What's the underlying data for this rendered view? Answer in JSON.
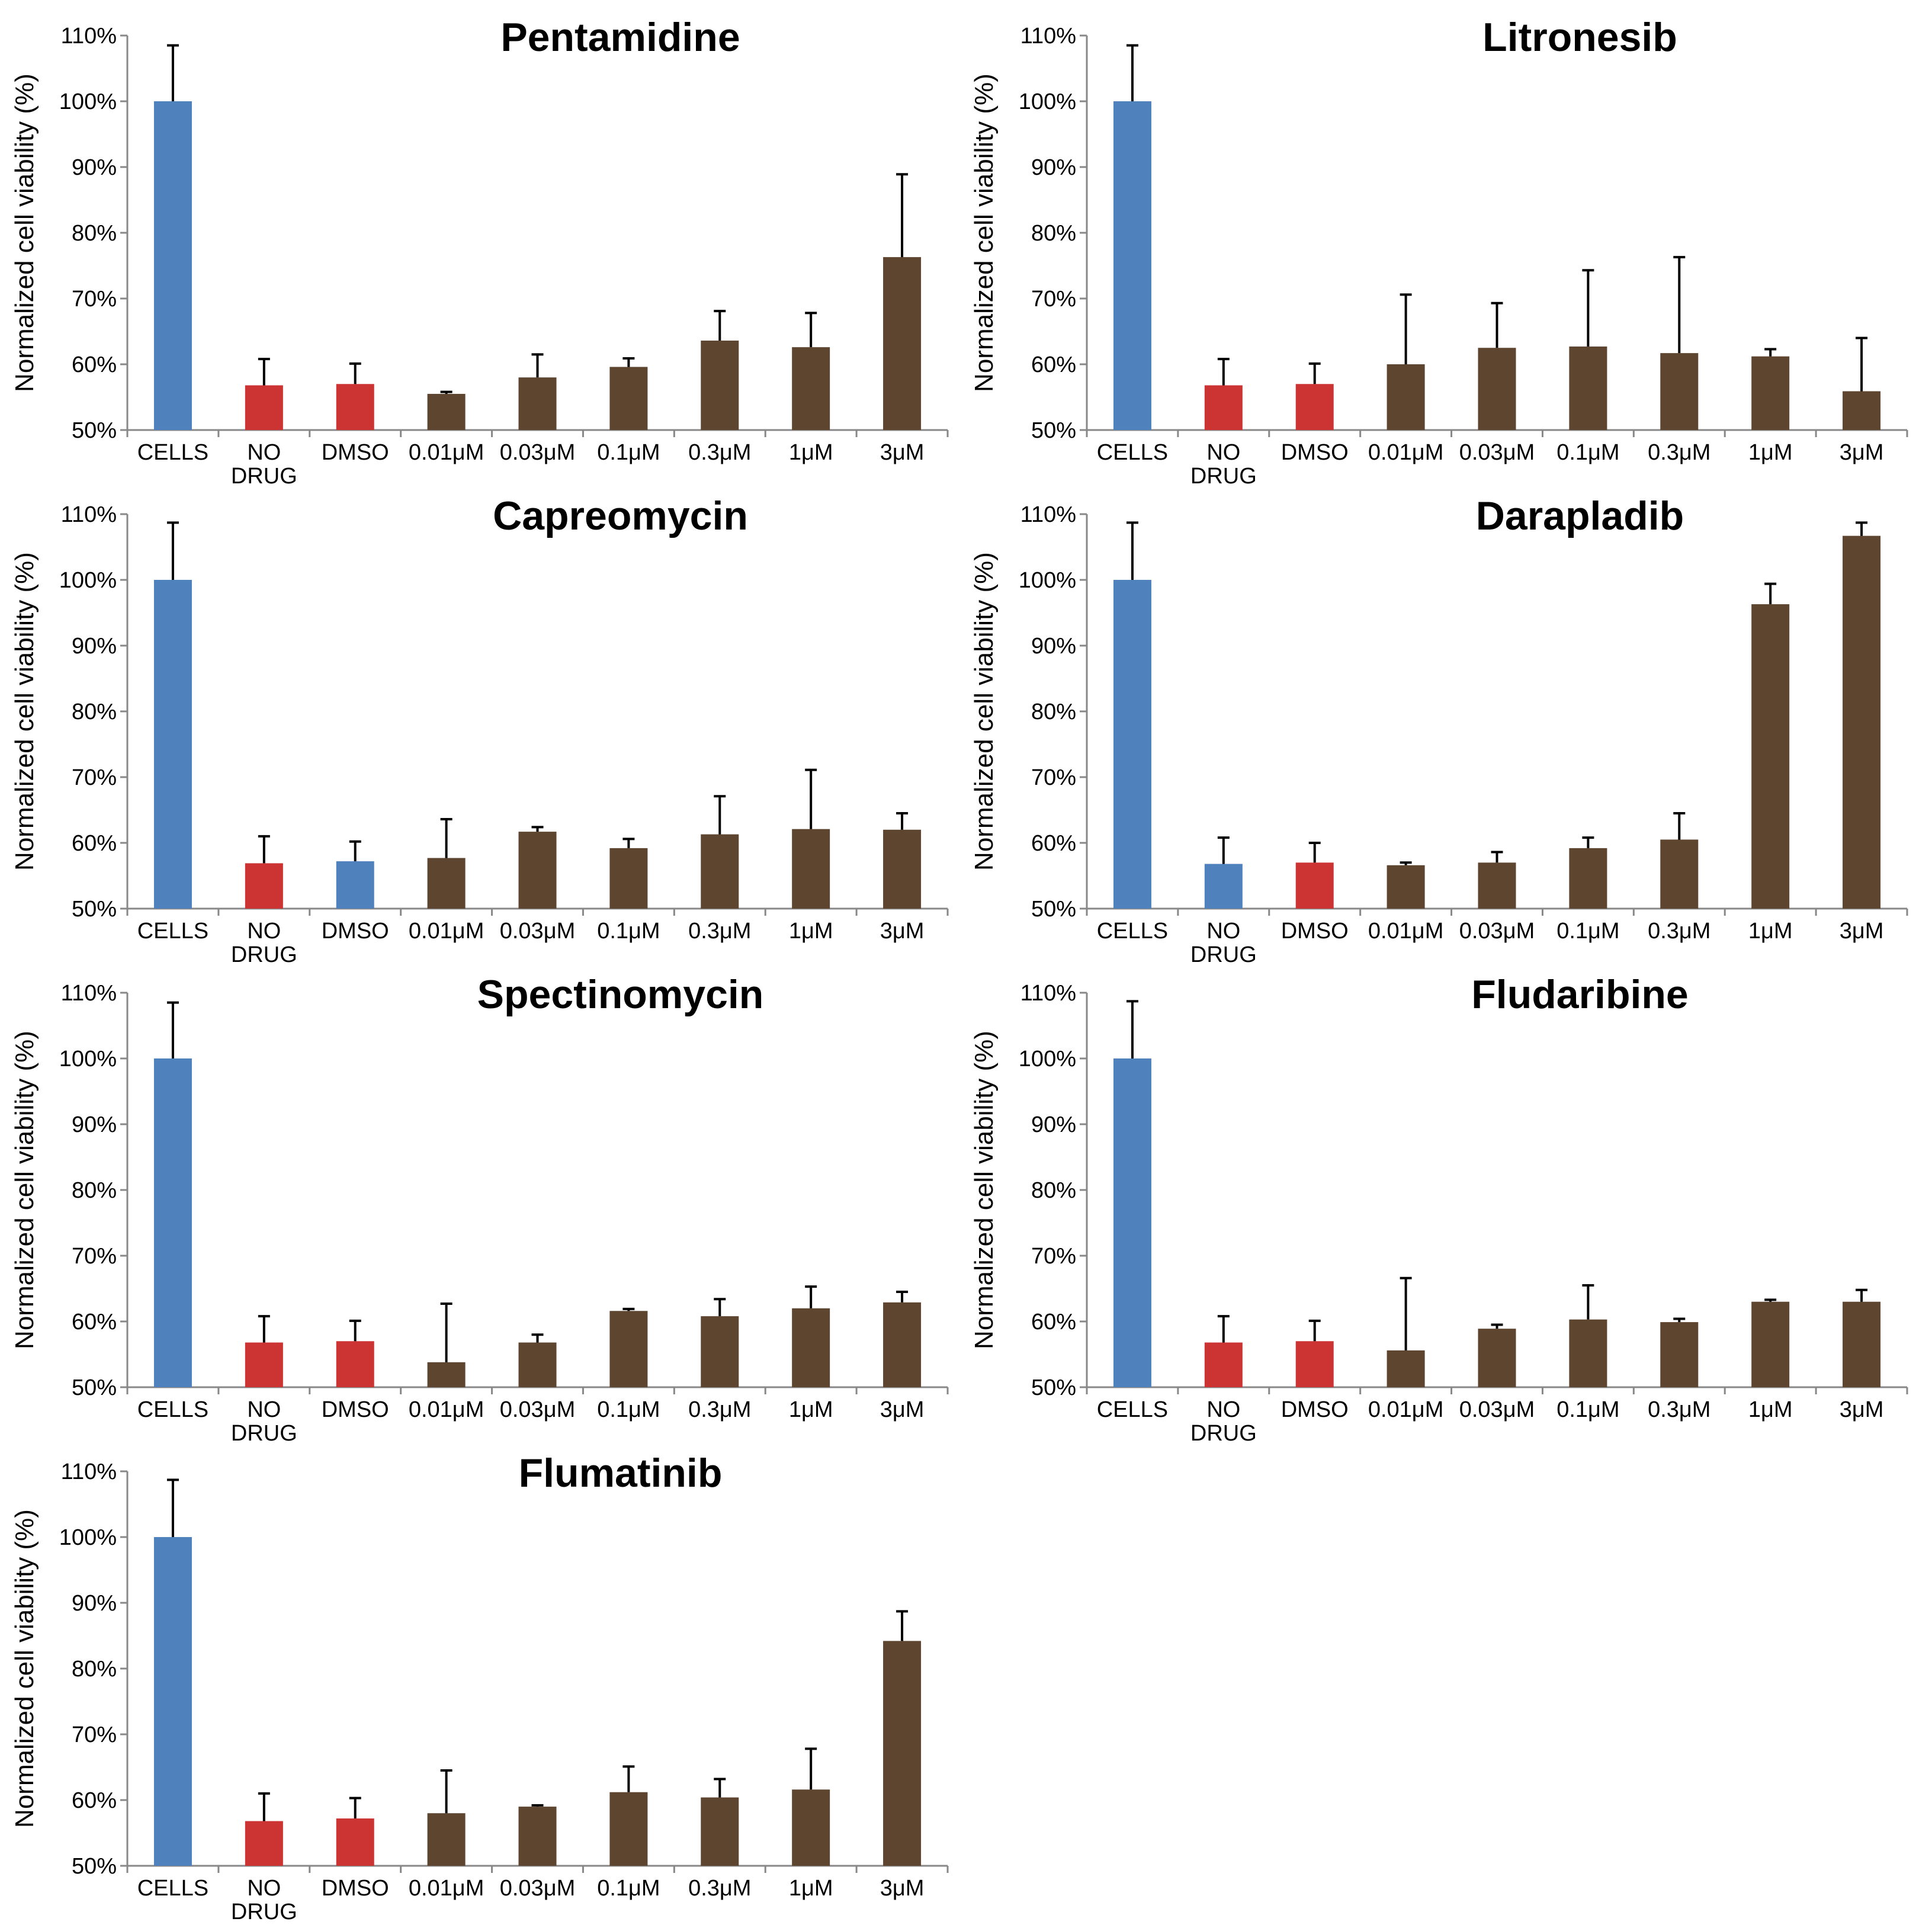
{
  "colors": {
    "cells": "#4f81bd",
    "control": "#cc3333",
    "drug": "#5e4530",
    "axis": "#888888",
    "error": "#000000"
  },
  "y_axis_label": "Normalized cell viability (%)",
  "y_ticks": [
    "50%",
    "60%",
    "70%",
    "80%",
    "90%",
    "100%",
    "110%"
  ],
  "categories": [
    "CELLS",
    [
      "NO",
      "DRUG"
    ],
    "DMSO",
    "0.01μM",
    "0.03μM",
    "0.1μM",
    "0.3μM",
    "1μM",
    "3μM"
  ],
  "chart_data": [
    {
      "type": "bar",
      "title": "Pentamidine",
      "ylabel": "Normalized cell viability (%)",
      "ylim": [
        50,
        110
      ],
      "categories": [
        "CELLS",
        "NO DRUG",
        "DMSO",
        "0.01μM",
        "0.03μM",
        "0.1μM",
        "0.3μM",
        "1μM",
        "3μM"
      ],
      "values": [
        100,
        56.8,
        57.0,
        55.5,
        58.0,
        59.6,
        63.6,
        62.6,
        76.3
      ],
      "errors": [
        8.5,
        4.0,
        3.1,
        0.3,
        3.5,
        1.3,
        4.5,
        5.2,
        12.6
      ],
      "bar_colors": [
        "cells",
        "control",
        "control",
        "drug",
        "drug",
        "drug",
        "drug",
        "drug",
        "drug"
      ]
    },
    {
      "type": "bar",
      "title": "Litronesib",
      "ylabel": "Normalized cell viability (%)",
      "ylim": [
        50,
        110
      ],
      "categories": [
        "CELLS",
        "NO DRUG",
        "DMSO",
        "0.01μM",
        "0.03μM",
        "0.1μM",
        "0.3μM",
        "1μM",
        "3μM"
      ],
      "values": [
        100,
        56.8,
        57.0,
        60.0,
        62.5,
        62.7,
        61.7,
        61.2,
        55.9
      ],
      "errors": [
        8.5,
        4.0,
        3.1,
        10.6,
        6.8,
        11.6,
        14.6,
        1.1,
        8.1
      ],
      "bar_colors": [
        "cells",
        "control",
        "control",
        "drug",
        "drug",
        "drug",
        "drug",
        "drug",
        "drug"
      ]
    },
    {
      "type": "bar",
      "title": "Capreomycin",
      "ylabel": "Normalized cell viability (%)",
      "ylim": [
        50,
        110
      ],
      "categories": [
        "CELLS",
        "NO DRUG",
        "DMSO",
        "0.01μM",
        "0.03μM",
        "0.1μM",
        "0.3μM",
        "1μM",
        "3μM"
      ],
      "values": [
        100,
        56.9,
        57.2,
        57.7,
        61.7,
        59.2,
        61.3,
        62.1,
        62.0
      ],
      "errors": [
        8.7,
        4.1,
        3.0,
        5.9,
        0.7,
        1.4,
        5.8,
        9.0,
        2.5
      ],
      "bar_colors": [
        "cells",
        "control",
        "cells",
        "drug",
        "drug",
        "drug",
        "drug",
        "drug",
        "drug"
      ]
    },
    {
      "type": "bar",
      "title": "Darapladib",
      "ylabel": "Normalized cell viability (%)",
      "ylim": [
        50,
        110
      ],
      "categories": [
        "CELLS",
        "NO DRUG",
        "DMSO",
        "0.01μM",
        "0.03μM",
        "0.1μM",
        "0.3μM",
        "1μM",
        "3μM"
      ],
      "values": [
        100,
        56.8,
        57.0,
        56.6,
        57.0,
        59.2,
        60.5,
        96.3,
        106.7
      ],
      "errors": [
        8.7,
        4.0,
        3.0,
        0.4,
        1.6,
        1.6,
        4.0,
        3.1,
        2.0
      ],
      "bar_colors": [
        "cells",
        "cells",
        "control",
        "drug",
        "drug",
        "drug",
        "drug",
        "drug",
        "drug"
      ]
    },
    {
      "type": "bar",
      "title": "Spectinomycin",
      "ylabel": "Normalized cell viability (%)",
      "ylim": [
        50,
        110
      ],
      "categories": [
        "CELLS",
        "NO DRUG",
        "DMSO",
        "0.01μM",
        "0.03μM",
        "0.1μM",
        "0.3μM",
        "1μM",
        "3μM"
      ],
      "values": [
        100,
        56.8,
        57.0,
        53.8,
        56.8,
        61.6,
        60.8,
        62.0,
        62.9
      ],
      "errors": [
        8.5,
        4.0,
        3.1,
        8.9,
        1.2,
        0.3,
        2.6,
        3.3,
        1.6
      ],
      "bar_colors": [
        "cells",
        "control",
        "control",
        "drug",
        "drug",
        "drug",
        "drug",
        "drug",
        "drug"
      ]
    },
    {
      "type": "bar",
      "title": "Fludaribine",
      "ylabel": "Normalized cell viability (%)",
      "ylim": [
        50,
        110
      ],
      "categories": [
        "CELLS",
        "NO DRUG",
        "DMSO",
        "0.01μM",
        "0.03μM",
        "0.1μM",
        "0.3μM",
        "1μM",
        "3μM"
      ],
      "values": [
        100,
        56.8,
        57.0,
        55.6,
        58.9,
        60.3,
        59.9,
        63.0,
        63.0
      ],
      "errors": [
        8.7,
        4.0,
        3.1,
        11.0,
        0.6,
        5.2,
        0.5,
        0.3,
        1.8
      ],
      "bar_colors": [
        "cells",
        "control",
        "control",
        "drug",
        "drug",
        "drug",
        "drug",
        "drug",
        "drug"
      ]
    },
    {
      "type": "bar",
      "title": "Flumatinib",
      "ylabel": "Normalized cell viability (%)",
      "ylim": [
        50,
        110
      ],
      "categories": [
        "CELLS",
        "NO DRUG",
        "DMSO",
        "0.01μM",
        "0.03μM",
        "0.1μM",
        "0.3μM",
        "1μM",
        "3μM"
      ],
      "values": [
        100,
        56.8,
        57.2,
        58.0,
        59.0,
        61.2,
        60.4,
        61.6,
        84.2
      ],
      "errors": [
        8.7,
        4.2,
        3.1,
        6.5,
        0.2,
        3.9,
        2.8,
        6.2,
        4.5
      ],
      "bar_colors": [
        "cells",
        "control",
        "control",
        "drug",
        "drug",
        "drug",
        "drug",
        "drug",
        "drug"
      ]
    }
  ]
}
